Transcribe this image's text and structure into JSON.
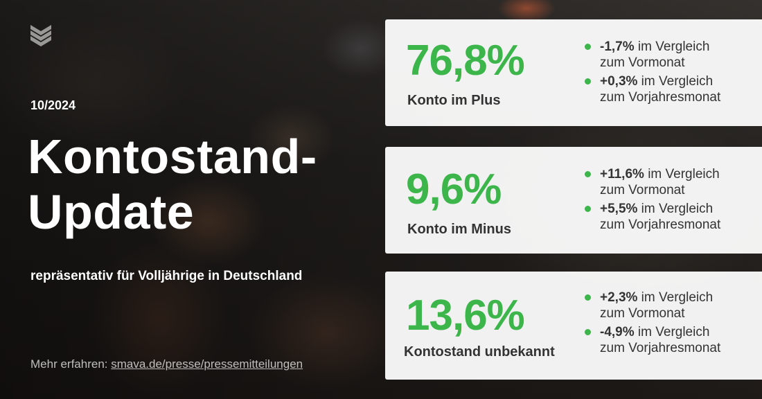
{
  "brand": {
    "accent": "#3cb54a",
    "logo": "smava-chevron-logo"
  },
  "date": "10/2024",
  "title_line1": "Kontostand-",
  "title_line2": "Update",
  "subtitle": "repräsentativ für Volljährige in Deutschland",
  "more_prefix": "Mehr erfahren:",
  "more_link": "smava.de/presse/pressemitteilungen",
  "cards": [
    {
      "value": "76,8%",
      "label": "Konto im Plus",
      "changes": [
        {
          "delta": "-1,7%",
          "text_a": " im Vergleich",
          "text_b": "zum Vormonat"
        },
        {
          "delta": "+0,3%",
          "text_a": " im Vergleich",
          "text_b": "zum Vorjahresmonat"
        }
      ]
    },
    {
      "value": "9,6%",
      "label": "Konto im Minus",
      "changes": [
        {
          "delta": "+11,6%",
          "text_a": " im Vergleich",
          "text_b": "zum Vormonat"
        },
        {
          "delta": "+5,5%",
          "text_a": " im Vergleich",
          "text_b": "zum Vorjahresmonat"
        }
      ]
    },
    {
      "value": "13,6%",
      "label": "Kontostand unbekannt",
      "changes": [
        {
          "delta": "+2,3%",
          "text_a": " im Vergleich",
          "text_b": "zum Vormonat"
        },
        {
          "delta": "-4,9%",
          "text_a": " im Vergleich",
          "text_b": "zum Vorjahresmonat"
        }
      ]
    }
  ]
}
